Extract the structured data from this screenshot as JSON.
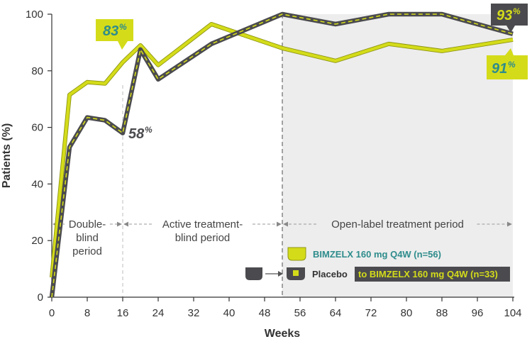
{
  "chart_data": {
    "type": "line",
    "xlabel": "Weeks",
    "ylabel": "Patients (%)",
    "xlim": [
      0,
      104
    ],
    "ylim": [
      0,
      100
    ],
    "xticks": [
      0,
      8,
      16,
      24,
      32,
      40,
      48,
      56,
      64,
      72,
      80,
      88,
      96,
      104
    ],
    "yticks": [
      0,
      20,
      40,
      60,
      80,
      100
    ],
    "grid": false,
    "series": [
      {
        "name": "BIMZELX 160 mg Q4W (n=56)",
        "color": "#d4dc1a",
        "points": [
          [
            0,
            7
          ],
          [
            4,
            71.5
          ],
          [
            8,
            76
          ],
          [
            12,
            75.5
          ],
          [
            16,
            83
          ],
          [
            20,
            89
          ],
          [
            24,
            82
          ],
          [
            36,
            96.5
          ],
          [
            52,
            88
          ],
          [
            64,
            83.5
          ],
          [
            76,
            89.5
          ],
          [
            88,
            87
          ],
          [
            104,
            91
          ]
        ]
      },
      {
        "name": "Placebo to BIMZELX 160 mg Q4W (n=33)",
        "color": "#4b4b4f",
        "points": [
          [
            0,
            0
          ],
          [
            4,
            53
          ],
          [
            8,
            63.5
          ],
          [
            12,
            62.5
          ],
          [
            16,
            58
          ],
          [
            20,
            87.5
          ],
          [
            24,
            77
          ],
          [
            36,
            89.5
          ],
          [
            52,
            100
          ],
          [
            64,
            96.5
          ],
          [
            76,
            100
          ],
          [
            88,
            100
          ],
          [
            104,
            93
          ]
        ]
      }
    ],
    "periods": [
      {
        "label_lines": [
          "Double-",
          "blind",
          "period"
        ],
        "start": 0,
        "end": 16
      },
      {
        "label_lines": [
          "Active treatment-",
          "blind period"
        ],
        "start": 16,
        "end": 52
      },
      {
        "label_lines": [
          "Open-label treatment period"
        ],
        "start": 52,
        "end": 104
      }
    ],
    "annotations": [
      {
        "id": "bimzelx-week16",
        "value": "83",
        "suffix": "%",
        "x": 16,
        "y": 83
      },
      {
        "id": "placebo-week16",
        "value": "58",
        "suffix": "%",
        "x": 16,
        "y": 58
      },
      {
        "id": "placebo-week104",
        "value": "93",
        "suffix": "%",
        "x": 104,
        "y": 93
      },
      {
        "id": "bimzelx-week104",
        "value": "91",
        "suffix": "%",
        "x": 104,
        "y": 91
      }
    ],
    "legend": {
      "position": "bottom-right",
      "bimzelx_label": "BIMZELX 160 mg Q4W (n=56)",
      "placebo_label": "Placebo",
      "placebo_switch_label": "to BIMZELX 160 mg Q4W (n=33)"
    }
  },
  "colors": {
    "bimzelx": "#d4dc1a",
    "placebo": "#4b4b4f",
    "bimzelx_text": "#2e8c8c",
    "open_label_shade": "#ededed"
  }
}
